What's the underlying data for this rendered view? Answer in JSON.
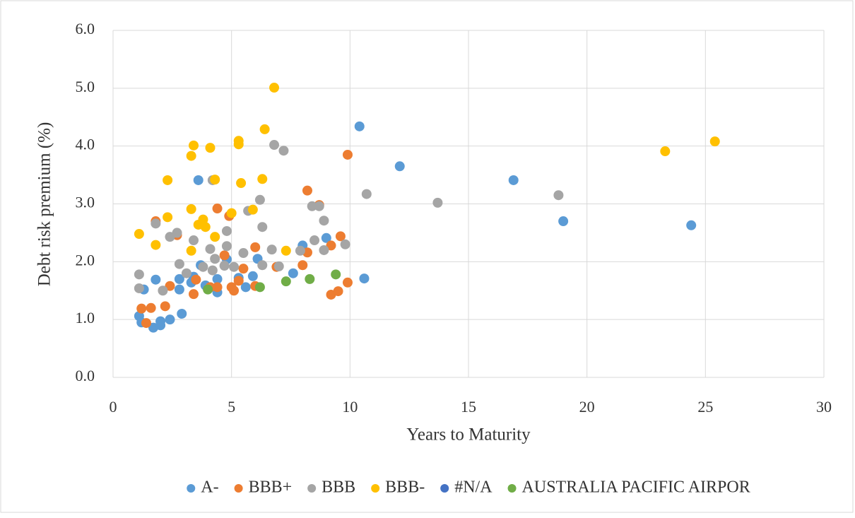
{
  "chart_data": {
    "type": "scatter",
    "x_label": "Years to Maturity",
    "y_label": "Debt risk premium (%)",
    "xlim": [
      0,
      30
    ],
    "xticks": [
      0,
      5,
      10,
      15,
      20,
      25,
      30
    ],
    "ylim": [
      0,
      6
    ],
    "yticks": [
      {
        "value": 0,
        "label": "0.0"
      },
      {
        "value": 1,
        "label": "1.0"
      },
      {
        "value": 2,
        "label": "2.0"
      },
      {
        "value": 3,
        "label": "3.0"
      },
      {
        "value": 4,
        "label": "4.0"
      },
      {
        "value": 5,
        "label": "5.0"
      },
      {
        "value": 6,
        "label": "6.0"
      }
    ],
    "grid": true,
    "legend": "bottom",
    "series": [
      {
        "name": "A-",
        "color": "#5b9bd5",
        "x": [
          1.1,
          1.2,
          1.3,
          1.7,
          1.8,
          2.0,
          2.0,
          2.4,
          2.9,
          2.8,
          2.8,
          3.3,
          3.4,
          3.7,
          3.6,
          4.4,
          4.4,
          4.8,
          5.3,
          5.6,
          5.9,
          6.1,
          7.6,
          8.0,
          9.0,
          10.4,
          10.6,
          12.1,
          16.9,
          19.0,
          24.4,
          3.9
        ],
        "values": [
          1.06,
          0.95,
          1.52,
          0.86,
          1.69,
          0.97,
          0.9,
          1.0,
          1.1,
          1.52,
          1.7,
          1.64,
          1.74,
          1.94,
          3.41,
          1.47,
          1.7,
          2.04,
          1.72,
          1.56,
          1.75,
          2.05,
          1.8,
          2.28,
          2.41,
          4.34,
          1.71,
          3.65,
          3.41,
          2.7,
          2.63,
          1.59
        ]
      },
      {
        "name": "BBB+",
        "color": "#ed7d31",
        "x": [
          1.2,
          1.4,
          1.6,
          1.8,
          2.2,
          2.4,
          2.7,
          3.4,
          3.5,
          4.4,
          4.4,
          4.7,
          4.9,
          5.0,
          5.1,
          5.3,
          5.5,
          6.0,
          6.0,
          6.9,
          8.2,
          8.2,
          8.0,
          8.7,
          9.2,
          9.2,
          9.5,
          9.6,
          9.9,
          9.9,
          4.1
        ],
        "values": [
          1.19,
          0.94,
          1.2,
          2.7,
          1.23,
          1.58,
          2.46,
          1.44,
          1.69,
          2.92,
          1.56,
          2.11,
          2.79,
          1.56,
          1.5,
          1.67,
          1.88,
          2.25,
          1.58,
          1.91,
          3.23,
          2.16,
          1.94,
          2.98,
          2.28,
          1.43,
          1.49,
          2.44,
          1.64,
          3.85,
          1.56
        ]
      },
      {
        "name": "BBB",
        "color": "#a5a5a5",
        "x": [
          1.1,
          1.1,
          1.8,
          2.1,
          2.4,
          2.7,
          2.8,
          3.1,
          3.4,
          3.8,
          4.1,
          4.2,
          4.3,
          4.7,
          4.8,
          4.8,
          5.1,
          5.5,
          5.7,
          6.2,
          6.3,
          6.3,
          6.7,
          6.8,
          7.2,
          7.0,
          7.9,
          8.4,
          8.7,
          8.9,
          8.5,
          8.9,
          9.8,
          10.7,
          13.7,
          18.8,
          4.2
        ],
        "values": [
          1.78,
          1.54,
          2.66,
          1.5,
          2.43,
          2.5,
          1.96,
          1.8,
          2.37,
          1.91,
          2.22,
          1.85,
          2.05,
          1.93,
          2.27,
          2.53,
          1.91,
          2.15,
          2.88,
          3.07,
          2.6,
          1.94,
          2.21,
          4.02,
          3.92,
          1.92,
          2.19,
          2.96,
          2.96,
          2.71,
          2.37,
          2.2,
          2.3,
          3.17,
          3.02,
          3.15,
          3.41
        ]
      },
      {
        "name": "BBB-",
        "color": "#ffc000",
        "x": [
          1.1,
          1.8,
          2.3,
          2.3,
          3.3,
          3.3,
          3.4,
          3.3,
          3.6,
          3.8,
          3.9,
          4.1,
          4.3,
          4.3,
          5.0,
          5.3,
          5.3,
          5.4,
          5.9,
          6.3,
          6.4,
          6.8,
          7.3,
          23.3,
          25.4
        ],
        "values": [
          2.48,
          2.29,
          3.41,
          2.77,
          2.91,
          3.83,
          4.01,
          2.19,
          2.64,
          2.73,
          2.6,
          3.97,
          2.43,
          3.42,
          2.84,
          4.09,
          4.03,
          3.36,
          2.9,
          3.43,
          4.29,
          5.01,
          2.19,
          3.91,
          4.08
        ]
      },
      {
        "name": "#N/A",
        "color": "#4472c4",
        "x": [],
        "values": []
      },
      {
        "name": "AUSTRALIA PACIFIC AIRPOR",
        "color": "#70ad47",
        "x": [
          4.0,
          6.2,
          7.3,
          8.3,
          9.4
        ],
        "values": [
          1.52,
          1.56,
          1.66,
          1.7,
          1.78
        ]
      }
    ]
  }
}
